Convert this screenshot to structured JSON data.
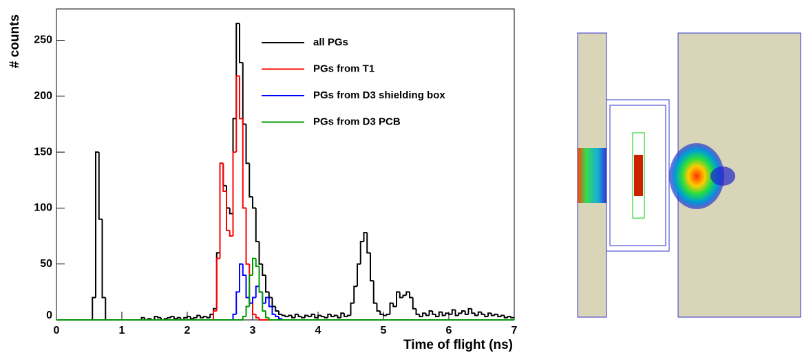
{
  "chart_data": {
    "type": "histogram",
    "xlabel": "Time of flight (ns)",
    "ylabel": "# counts",
    "xlim": [
      0,
      7
    ],
    "ylim": [
      0,
      278
    ],
    "xticks": [
      0,
      1,
      2,
      3,
      4,
      5,
      6,
      7
    ],
    "yticks": [
      0,
      50,
      100,
      150,
      200,
      250
    ],
    "bins": [
      0,
      0.05,
      0.1,
      0.15,
      0.2,
      0.25,
      0.3,
      0.35,
      0.4,
      0.45,
      0.5,
      0.55,
      0.6,
      0.65,
      0.7,
      0.75,
      0.8,
      0.85,
      0.9,
      0.95,
      1,
      1.05,
      1.1,
      1.15,
      1.2,
      1.25,
      1.3,
      1.35,
      1.4,
      1.45,
      1.5,
      1.55,
      1.6,
      1.65,
      1.7,
      1.75,
      1.8,
      1.85,
      1.9,
      1.95,
      2,
      2.05,
      2.1,
      2.15,
      2.2,
      2.25,
      2.3,
      2.35,
      2.4,
      2.45,
      2.5,
      2.55,
      2.6,
      2.65,
      2.7,
      2.75,
      2.8,
      2.85,
      2.9,
      2.95,
      3,
      3.05,
      3.1,
      3.15,
      3.2,
      3.25,
      3.3,
      3.35,
      3.4,
      3.45,
      3.5,
      3.55,
      3.6,
      3.65,
      3.7,
      3.75,
      3.8,
      3.85,
      3.9,
      3.95,
      4,
      4.05,
      4.1,
      4.15,
      4.2,
      4.25,
      4.3,
      4.35,
      4.4,
      4.45,
      4.5,
      4.55,
      4.6,
      4.65,
      4.7,
      4.75,
      4.8,
      4.85,
      4.9,
      4.95,
      5,
      5.05,
      5.1,
      5.15,
      5.2,
      5.25,
      5.3,
      5.35,
      5.4,
      5.45,
      5.5,
      5.55,
      5.6,
      5.65,
      5.7,
      5.75,
      5.8,
      5.85,
      5.9,
      5.95,
      6,
      6.05,
      6.1,
      6.15,
      6.2,
      6.25,
      6.3,
      6.35,
      6.4,
      6.45,
      6.5,
      6.55,
      6.6,
      6.65,
      6.7,
      6.75,
      6.8,
      6.85,
      6.9,
      6.95,
      7
    ],
    "series": [
      {
        "name": "all PGs",
        "color": "#000000",
        "values": [
          0,
          0,
          0,
          0,
          0,
          0,
          0,
          0,
          0,
          0,
          0,
          20,
          150,
          90,
          20,
          0,
          0,
          0,
          0,
          0,
          0,
          0,
          0,
          0,
          0,
          0,
          2,
          0,
          1,
          0,
          3,
          2,
          0,
          1,
          2,
          3,
          1,
          2,
          0,
          2,
          3,
          1,
          2,
          4,
          2,
          3,
          2,
          5,
          10,
          60,
          140,
          120,
          100,
          95,
          180,
          265,
          230,
          175,
          140,
          110,
          100,
          70,
          50,
          40,
          25,
          20,
          12,
          8,
          5,
          4,
          3,
          4,
          2,
          5,
          3,
          2,
          4,
          3,
          5,
          2,
          4,
          3,
          2,
          5,
          3,
          4,
          2,
          6,
          3,
          4,
          15,
          30,
          50,
          70,
          78,
          60,
          35,
          15,
          8,
          5,
          4,
          5,
          15,
          12,
          25,
          20,
          22,
          25,
          20,
          10,
          5,
          3,
          6,
          4,
          8,
          5,
          3,
          7,
          4,
          6,
          5,
          9,
          4,
          6,
          8,
          5,
          10,
          6,
          4,
          7,
          5,
          3,
          6,
          4,
          5,
          3,
          4,
          2,
          3,
          2
        ]
      },
      {
        "name": "PGs from T1",
        "color": "#ff0000",
        "values": [
          0,
          0,
          0,
          0,
          0,
          0,
          0,
          0,
          0,
          0,
          0,
          0,
          0,
          0,
          0,
          0,
          0,
          0,
          0,
          0,
          0,
          0,
          0,
          0,
          0,
          0,
          0,
          0,
          0,
          0,
          0,
          0,
          0,
          0,
          0,
          0,
          0,
          0,
          0,
          0,
          0,
          0,
          0,
          0,
          0,
          0,
          0,
          0,
          8,
          55,
          140,
          115,
          80,
          75,
          150,
          218,
          180,
          100,
          50,
          15,
          5,
          2,
          0,
          0,
          0,
          0,
          0,
          0,
          0,
          0,
          0,
          0,
          0,
          0,
          0,
          0,
          0,
          0,
          0,
          0,
          0,
          0,
          0,
          0,
          0,
          0,
          0,
          0,
          0,
          0,
          0,
          0,
          0,
          0,
          0,
          0,
          0,
          0,
          0,
          0,
          0,
          0,
          0,
          0,
          0,
          0,
          0,
          0,
          0,
          0,
          0,
          0,
          0,
          0,
          0,
          0,
          0,
          0,
          0,
          0,
          0,
          0,
          0,
          0,
          0,
          0,
          0,
          0,
          0,
          0,
          0,
          0,
          0,
          0,
          0,
          0,
          0,
          0,
          0,
          0
        ]
      },
      {
        "name": "PGs from D3 shielding box",
        "color": "#0000ff",
        "values": [
          0,
          0,
          0,
          0,
          0,
          0,
          0,
          0,
          0,
          0,
          0,
          0,
          0,
          0,
          0,
          0,
          0,
          0,
          0,
          0,
          0,
          0,
          0,
          0,
          0,
          0,
          0,
          0,
          0,
          0,
          0,
          0,
          0,
          0,
          0,
          0,
          0,
          0,
          0,
          0,
          0,
          0,
          0,
          0,
          0,
          0,
          0,
          0,
          0,
          0,
          0,
          0,
          0,
          0,
          5,
          25,
          50,
          40,
          20,
          15,
          20,
          30,
          25,
          15,
          20,
          12,
          5,
          3,
          1,
          0,
          0,
          0,
          0,
          0,
          0,
          0,
          0,
          0,
          0,
          0,
          0,
          0,
          0,
          0,
          0,
          0,
          0,
          0,
          0,
          0,
          0,
          0,
          0,
          0,
          0,
          0,
          0,
          0,
          0,
          0,
          0,
          0,
          0,
          0,
          0,
          0,
          0,
          0,
          0,
          0,
          0,
          0,
          0,
          0,
          0,
          0,
          0,
          0,
          0,
          0,
          0,
          0,
          0,
          0,
          0,
          0,
          0,
          0,
          0,
          0,
          0,
          0,
          0,
          0,
          0,
          0,
          0,
          0,
          0,
          0
        ]
      },
      {
        "name": "PGs from D3 PCB",
        "color": "#009900",
        "values": [
          0,
          0,
          0,
          0,
          0,
          0,
          0,
          0,
          0,
          0,
          0,
          0,
          0,
          0,
          0,
          0,
          0,
          0,
          0,
          0,
          0,
          0,
          0,
          0,
          0,
          0,
          0,
          0,
          0,
          0,
          0,
          0,
          0,
          0,
          0,
          0,
          0,
          0,
          0,
          0,
          0,
          0,
          0,
          0,
          0,
          0,
          0,
          0,
          0,
          0,
          0,
          0,
          0,
          0,
          0,
          0,
          0,
          3,
          12,
          40,
          55,
          48,
          25,
          8,
          2,
          0,
          0,
          0,
          0,
          0,
          0,
          0,
          0,
          0,
          0,
          0,
          0,
          0,
          0,
          0,
          0,
          0,
          0,
          0,
          0,
          0,
          0,
          0,
          0,
          0,
          0,
          0,
          0,
          0,
          0,
          0,
          0,
          0,
          0,
          0,
          0,
          0,
          0,
          0,
          0,
          0,
          0,
          0,
          0,
          0,
          0,
          0,
          0,
          0,
          0,
          0,
          0,
          0,
          0,
          0,
          0,
          0,
          0,
          0,
          0,
          0,
          0,
          0,
          0,
          0,
          0,
          0,
          0,
          0,
          0,
          0,
          0,
          0,
          0,
          0
        ]
      }
    ]
  }
}
